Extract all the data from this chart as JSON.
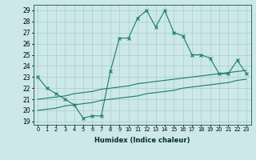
{
  "xlabel": "Humidex (Indice chaleur)",
  "x": [
    0,
    1,
    2,
    3,
    4,
    5,
    6,
    7,
    8,
    9,
    10,
    11,
    12,
    13,
    14,
    15,
    16,
    17,
    18,
    19,
    20,
    21,
    22,
    23
  ],
  "line_main": [
    23,
    22,
    21.5,
    21,
    20.5,
    19.3,
    19.5,
    19.5,
    23.5,
    26.5,
    26.5,
    28.3,
    29,
    27.5,
    29,
    27,
    26.7,
    25,
    25,
    24.7,
    23.3,
    23.3,
    24.5,
    23.3
  ],
  "line_upper": [
    21.0,
    21.1,
    21.2,
    21.3,
    21.5,
    21.6,
    21.7,
    21.9,
    22.0,
    22.1,
    22.2,
    22.4,
    22.5,
    22.6,
    22.7,
    22.8,
    22.9,
    23.0,
    23.1,
    23.2,
    23.3,
    23.4,
    23.5,
    23.6
  ],
  "line_lower": [
    20.0,
    20.1,
    20.2,
    20.4,
    20.5,
    20.6,
    20.7,
    20.9,
    21.0,
    21.1,
    21.2,
    21.3,
    21.5,
    21.6,
    21.7,
    21.8,
    22.0,
    22.1,
    22.2,
    22.3,
    22.4,
    22.5,
    22.7,
    22.8
  ],
  "ylim": [
    19,
    29
  ],
  "yticks": [
    19,
    20,
    21,
    22,
    23,
    24,
    25,
    26,
    27,
    28,
    29
  ],
  "color": "#1a7a6e",
  "bg_color": "#cce8e8",
  "grid_color": "#aacccc"
}
